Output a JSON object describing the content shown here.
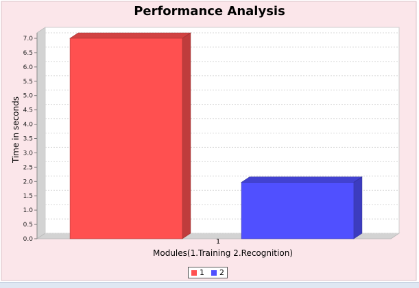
{
  "chart_data": {
    "type": "bar",
    "title": "Performance Analysis",
    "xlabel": "Modules(1.Training  2.Recognition)",
    "ylabel": "Time in seconds",
    "categories": [
      "1"
    ],
    "series": [
      {
        "name": "1",
        "values": [
          7.0
        ],
        "color": "#ff5050"
      },
      {
        "name": "2",
        "values": [
          1.97
        ],
        "color": "#5050ff"
      }
    ],
    "ylim": [
      0,
      7.0
    ],
    "yticks": [
      "0.0",
      "0.5",
      "1.0",
      "1.5",
      "2.0",
      "2.5",
      "3.0",
      "3.5",
      "4.0",
      "4.5",
      "5.0",
      "5.5",
      "6.0",
      "6.5",
      "7.0"
    ],
    "grid": true,
    "legend_position": "bottom",
    "background": "#fbe6ea"
  }
}
